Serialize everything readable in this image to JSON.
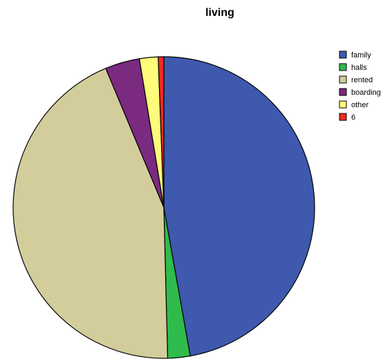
{
  "chart_data": {
    "type": "pie",
    "title": "living",
    "categories": [
      "family",
      "halls",
      "rented",
      "boarding",
      "other",
      "6"
    ],
    "values": [
      47.2,
      2.4,
      44.1,
      3.7,
      2.0,
      0.6
    ],
    "colors": [
      "#3e59ad",
      "#2fbb4b",
      "#d3cd9c",
      "#7a2a7f",
      "#fefc7a",
      "#ee2a24"
    ],
    "start_angle_deg": 0,
    "direction": "clockwise",
    "legend_position": "top-right"
  }
}
